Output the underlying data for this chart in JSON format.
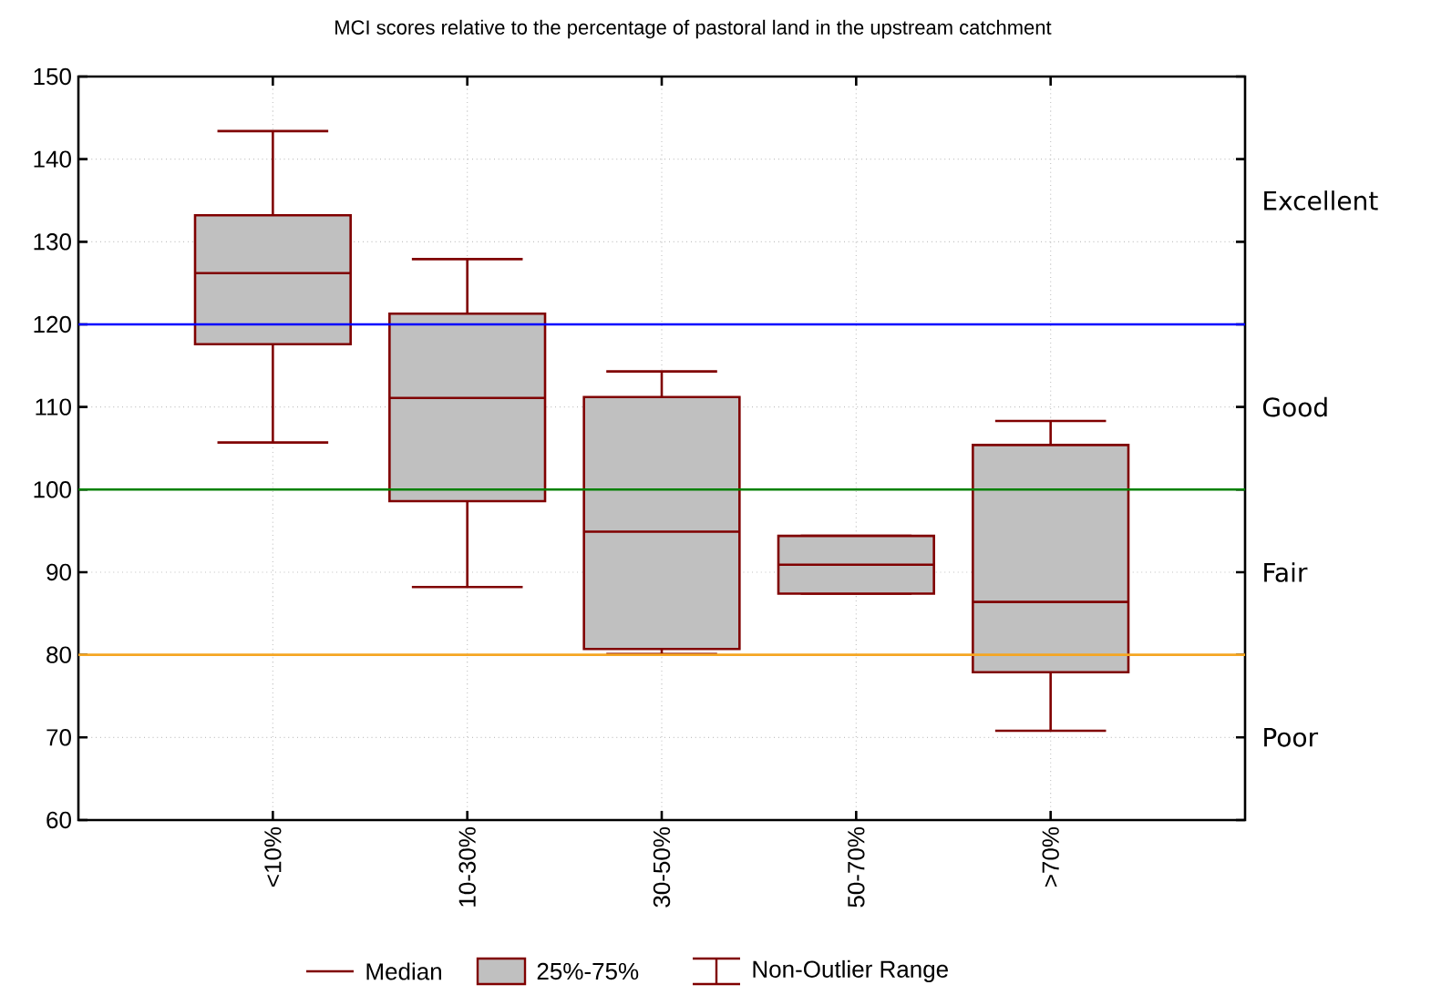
{
  "chart_data": {
    "type": "box",
    "title": "MCI scores relative to the percentage of pastoral land in the upstream catchment",
    "categories": [
      "<10%",
      "10-30%",
      "30-50%",
      "50-70%",
      ">70%"
    ],
    "color": "#800000",
    "boxes": [
      {
        "low": 105.7,
        "q1": 117.6,
        "median": 126.2,
        "q3": 133.2,
        "high": 143.4
      },
      {
        "low": 88.2,
        "q1": 98.6,
        "median": 111.1,
        "q3": 121.3,
        "high": 127.9
      },
      {
        "low": 80.1,
        "q1": 80.7,
        "median": 94.9,
        "q3": 111.2,
        "high": 114.3
      },
      {
        "low": 87.4,
        "q1": 87.4,
        "median": 90.9,
        "q3": 94.4,
        "high": 94.4
      },
      {
        "low": 70.8,
        "q1": 77.9,
        "median": 86.4,
        "q3": 105.4,
        "high": 108.3
      }
    ],
    "ylim": [
      60,
      150
    ],
    "yticks": [
      60,
      70,
      80,
      90,
      100,
      110,
      120,
      130,
      140,
      150
    ],
    "grid": true,
    "ref_lines": [
      {
        "axis": "y",
        "value": 120,
        "color": "#0000ff"
      },
      {
        "axis": "y",
        "value": 100,
        "color": "#008000"
      },
      {
        "axis": "y",
        "value": 80,
        "color": "#f5a623"
      }
    ],
    "annotations": [
      "Excellent",
      "Good",
      "Fair",
      "Poor",
      "Median",
      "25%-75%",
      "Non-Outlier Range"
    ]
  }
}
